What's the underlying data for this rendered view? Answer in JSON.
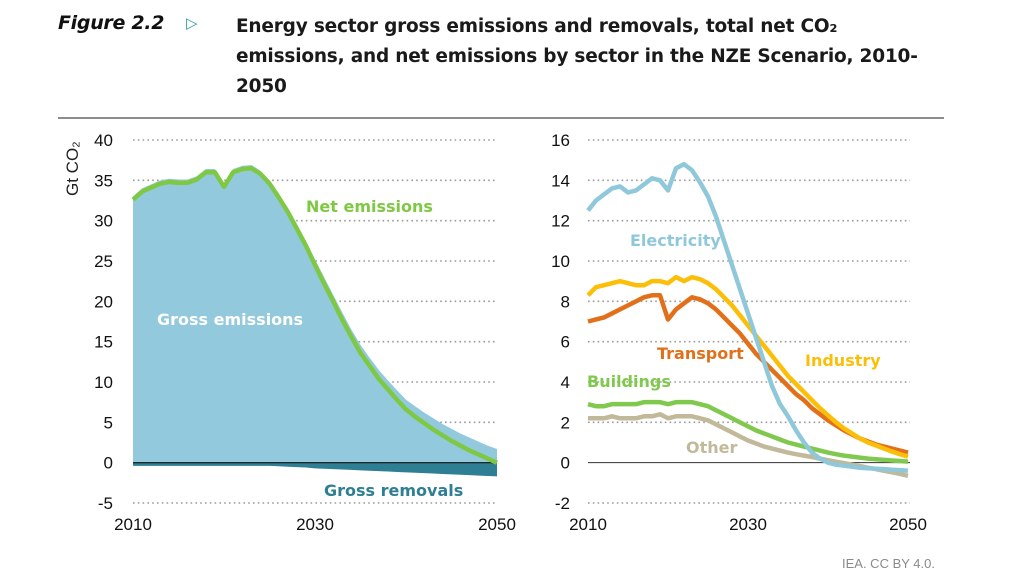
{
  "header": {
    "figure_label": "Figure 2.2",
    "arrow_icon": "triangle-right-icon",
    "title": "Energy sector gross emissions and removals, total net CO₂ emissions, and net emissions by sector in the NZE Scenario, 2010-2050"
  },
  "credit": "IEA. CC BY 4.0.",
  "colors": {
    "gross_emissions": "#92c9dc",
    "gross_removals": "#2f7f94",
    "net_emissions": "#7fc843",
    "electricity": "#8ec8da",
    "industry": "#fbbf0a",
    "transport": "#e2701a",
    "buildings": "#80c94e",
    "other": "#c2b89a",
    "grid": "#9a9a9a",
    "axis": "#333333"
  },
  "chart_data": [
    {
      "type": "area",
      "title": "Energy sector gross emissions, gross removals and net emissions",
      "ylabel": "Gt CO₂",
      "xlabel": "",
      "xlim": [
        2010,
        2050
      ],
      "ylim": [
        -5,
        40
      ],
      "xticks": [
        "2010",
        "2030",
        "2050"
      ],
      "yticks": [
        "-5",
        "0",
        "5",
        "10",
        "15",
        "20",
        "25",
        "30",
        "35",
        "40"
      ],
      "grid": true,
      "x": [
        2010,
        2011,
        2012,
        2013,
        2014,
        2015,
        2016,
        2017,
        2018,
        2019,
        2020,
        2021,
        2022,
        2023,
        2024,
        2025,
        2026,
        2027,
        2028,
        2029,
        2030,
        2031,
        2032,
        2033,
        2034,
        2035,
        2036,
        2037,
        2038,
        2039,
        2040,
        2041,
        2042,
        2043,
        2044,
        2045,
        2046,
        2047,
        2048,
        2049,
        2050
      ],
      "series": [
        {
          "name": "Gross emissions",
          "label": "Gross emissions",
          "values": [
            33.0,
            34.0,
            34.5,
            35.0,
            35.2,
            35.1,
            35.1,
            35.5,
            36.4,
            36.4,
            34.6,
            36.4,
            36.8,
            36.9,
            36.2,
            35.0,
            33.4,
            31.6,
            29.6,
            27.5,
            25.2,
            23.0,
            20.8,
            18.6,
            16.5,
            14.6,
            13.0,
            11.5,
            10.2,
            9.0,
            7.8,
            7.0,
            6.2,
            5.5,
            4.8,
            4.2,
            3.6,
            3.1,
            2.6,
            2.1,
            1.7
          ]
        },
        {
          "name": "Gross removals",
          "label": "Gross removals",
          "values": [
            -0.4,
            -0.4,
            -0.4,
            -0.4,
            -0.4,
            -0.4,
            -0.4,
            -0.4,
            -0.4,
            -0.4,
            -0.4,
            -0.4,
            -0.4,
            -0.4,
            -0.4,
            -0.4,
            -0.45,
            -0.5,
            -0.55,
            -0.6,
            -0.7,
            -0.75,
            -0.8,
            -0.85,
            -0.9,
            -0.95,
            -1.0,
            -1.05,
            -1.1,
            -1.15,
            -1.2,
            -1.25,
            -1.3,
            -1.35,
            -1.4,
            -1.45,
            -1.5,
            -1.55,
            -1.6,
            -1.65,
            -1.7
          ]
        },
        {
          "name": "Net emissions",
          "label": "Net emissions",
          "values": [
            32.6,
            33.6,
            34.1,
            34.6,
            34.8,
            34.7,
            34.7,
            35.1,
            36.0,
            36.0,
            34.2,
            36.0,
            36.4,
            36.5,
            35.8,
            34.6,
            32.9,
            31.1,
            29.0,
            26.9,
            24.5,
            22.2,
            20.0,
            17.7,
            15.6,
            13.6,
            12.0,
            10.4,
            9.1,
            7.8,
            6.6,
            5.7,
            4.9,
            4.1,
            3.4,
            2.7,
            2.1,
            1.5,
            1.0,
            0.5,
            0.0
          ]
        }
      ]
    },
    {
      "type": "line",
      "title": "Net emissions by sector",
      "ylabel": "",
      "xlabel": "",
      "xlim": [
        2010,
        2050
      ],
      "ylim": [
        -2,
        16
      ],
      "xticks": [
        "2010",
        "2030",
        "2050"
      ],
      "yticks": [
        "-2",
        "0",
        "2",
        "4",
        "6",
        "8",
        "10",
        "12",
        "14",
        "16"
      ],
      "grid": true,
      "x": [
        2010,
        2011,
        2012,
        2013,
        2014,
        2015,
        2016,
        2017,
        2018,
        2019,
        2020,
        2021,
        2022,
        2023,
        2024,
        2025,
        2026,
        2027,
        2028,
        2029,
        2030,
        2031,
        2032,
        2033,
        2034,
        2035,
        2036,
        2037,
        2038,
        2039,
        2040,
        2041,
        2042,
        2043,
        2044,
        2045,
        2046,
        2047,
        2048,
        2049,
        2050
      ],
      "series": [
        {
          "name": "Electricity",
          "values": [
            12.5,
            13.0,
            13.3,
            13.6,
            13.7,
            13.4,
            13.5,
            13.8,
            14.1,
            14.0,
            13.5,
            14.6,
            14.8,
            14.5,
            13.9,
            13.2,
            12.2,
            11.0,
            9.8,
            8.6,
            7.4,
            6.2,
            5.0,
            3.8,
            2.9,
            2.3,
            1.6,
            1.0,
            0.5,
            0.2,
            0.0,
            -0.1,
            -0.15,
            -0.2,
            -0.25,
            -0.28,
            -0.3,
            -0.32,
            -0.35,
            -0.37,
            -0.4
          ]
        },
        {
          "name": "Industry",
          "values": [
            8.3,
            8.7,
            8.8,
            8.9,
            9.0,
            8.9,
            8.8,
            8.8,
            9.0,
            9.0,
            8.9,
            9.2,
            9.0,
            9.2,
            9.1,
            8.9,
            8.6,
            8.2,
            7.8,
            7.3,
            6.8,
            6.3,
            5.8,
            5.3,
            4.8,
            4.3,
            3.9,
            3.5,
            3.1,
            2.7,
            2.35,
            2.0,
            1.7,
            1.45,
            1.2,
            1.0,
            0.85,
            0.7,
            0.55,
            0.42,
            0.3
          ]
        },
        {
          "name": "Transport",
          "values": [
            7.0,
            7.1,
            7.2,
            7.4,
            7.6,
            7.8,
            8.0,
            8.2,
            8.3,
            8.3,
            7.1,
            7.6,
            7.9,
            8.2,
            8.1,
            7.9,
            7.6,
            7.2,
            6.8,
            6.4,
            5.9,
            5.4,
            5.0,
            4.6,
            4.2,
            3.8,
            3.4,
            3.1,
            2.7,
            2.4,
            2.1,
            1.85,
            1.6,
            1.4,
            1.2,
            1.05,
            0.9,
            0.8,
            0.7,
            0.6,
            0.5
          ]
        },
        {
          "name": "Buildings",
          "values": [
            2.9,
            2.8,
            2.8,
            2.9,
            2.9,
            2.9,
            2.9,
            3.0,
            3.0,
            3.0,
            2.9,
            3.0,
            3.0,
            3.0,
            2.9,
            2.8,
            2.6,
            2.4,
            2.2,
            2.0,
            1.8,
            1.6,
            1.45,
            1.3,
            1.15,
            1.0,
            0.9,
            0.8,
            0.7,
            0.6,
            0.5,
            0.42,
            0.35,
            0.3,
            0.25,
            0.2,
            0.17,
            0.14,
            0.11,
            0.08,
            0.05
          ]
        },
        {
          "name": "Other",
          "values": [
            2.2,
            2.2,
            2.2,
            2.3,
            2.2,
            2.2,
            2.2,
            2.3,
            2.3,
            2.4,
            2.2,
            2.3,
            2.3,
            2.3,
            2.2,
            2.1,
            1.9,
            1.7,
            1.5,
            1.3,
            1.1,
            0.95,
            0.8,
            0.7,
            0.6,
            0.5,
            0.42,
            0.35,
            0.28,
            0.2,
            0.12,
            0.05,
            -0.02,
            -0.1,
            -0.17,
            -0.25,
            -0.32,
            -0.4,
            -0.48,
            -0.56,
            -0.65
          ]
        }
      ],
      "labels": {
        "electricity": "Electricity",
        "industry": "Industry",
        "transport": "Transport",
        "buildings": "Buildings",
        "other": "Other"
      }
    }
  ]
}
